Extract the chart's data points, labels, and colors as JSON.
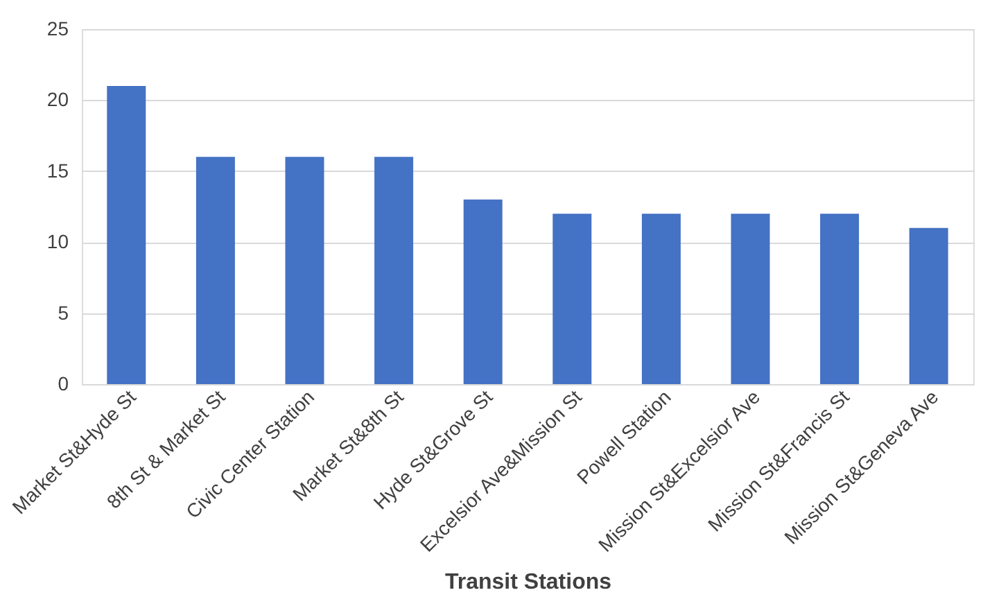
{
  "chart_data": {
    "type": "bar",
    "xlabel": "Transit Stations",
    "categories": [
      "Market St&Hyde St",
      "8th St & Market St",
      "Civic Center Station",
      "Market St&8th St",
      "Hyde St&Grove St",
      "Excelsior Ave&Mission St",
      "Powell Station",
      "Mission St&Excelsior Ave",
      "Mission St&Francis St",
      "Mission St&Geneva Ave"
    ],
    "values": [
      21,
      16,
      16,
      16,
      13,
      12,
      12,
      12,
      12,
      11
    ],
    "color": "#4472c4",
    "ylim": [
      0,
      25
    ],
    "yticks": [
      0,
      5,
      10,
      15,
      20,
      25
    ],
    "grid": "y"
  }
}
